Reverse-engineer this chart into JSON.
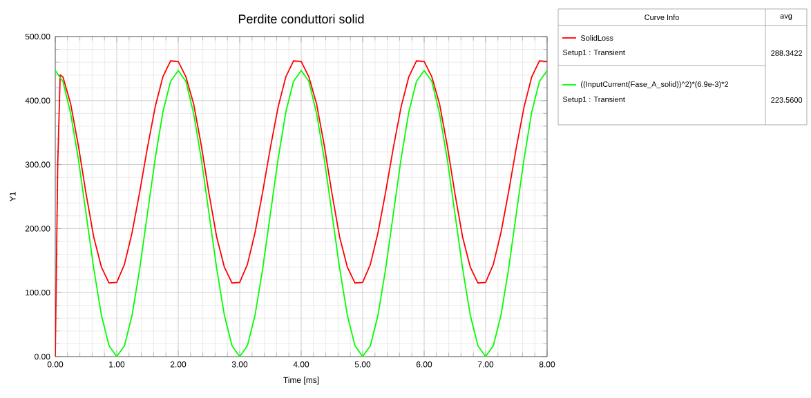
{
  "chart_data": {
    "type": "line",
    "title": "Perdite conduttori solid",
    "xlabel": "Time [ms]",
    "ylabel": "Y1",
    "legend_title": "Curve Info",
    "annotations": [
      "avg",
      "Setup1 : Transient",
      "288.3422",
      "Setup1 : Transient",
      "223.5600"
    ],
    "xlim": [
      0,
      8
    ],
    "ylim": [
      0,
      500
    ],
    "xticks": [
      {
        "value": 0,
        "label": "0.00"
      },
      {
        "value": 1,
        "label": "1.00"
      },
      {
        "value": 2,
        "label": "2.00"
      },
      {
        "value": 3,
        "label": "3.00"
      },
      {
        "value": 4,
        "label": "4.00"
      },
      {
        "value": 5,
        "label": "5.00"
      },
      {
        "value": 6,
        "label": "6.00"
      },
      {
        "value": 7,
        "label": "7.00"
      },
      {
        "value": 8,
        "label": "8.00"
      }
    ],
    "yticks": [
      {
        "value": 0,
        "label": "0.00"
      },
      {
        "value": 100,
        "label": "100.00"
      },
      {
        "value": 200,
        "label": "200.00"
      },
      {
        "value": 300,
        "label": "300.00"
      },
      {
        "value": 400,
        "label": "400.00"
      },
      {
        "value": 500,
        "label": "500.00"
      }
    ],
    "grid": true,
    "legend": "right",
    "line_style": "solid",
    "series": [
      {
        "name": "SolidLoss",
        "color": "#ff0000",
        "x": [
          0,
          0.04,
          0.08,
          0.125,
          0.25,
          0.375,
          0.5,
          0.625,
          0.75,
          0.875,
          1,
          1.125,
          1.25,
          1.375,
          1.5,
          1.625,
          1.75,
          1.875,
          2,
          2.125,
          2.25,
          2.375,
          2.5,
          2.625,
          2.75,
          2.875,
          3,
          3.125,
          3.25,
          3.375,
          3.5,
          3.625,
          3.75,
          3.875,
          4,
          4.125,
          4.25,
          4.375,
          4.5,
          4.625,
          4.75,
          4.875,
          5,
          5.125,
          5.25,
          5.375,
          5.5,
          5.625,
          5.75,
          5.875,
          6,
          6.125,
          6.25,
          6.375,
          6.5,
          6.625,
          6.75,
          6.875,
          7,
          7.125,
          7.25,
          7.375,
          7.5,
          7.625,
          7.75,
          7.875,
          8
        ],
        "values": [
          0,
          300,
          440,
          437,
          395,
          330,
          255,
          187,
          140,
          115,
          116,
          144,
          194,
          258,
          327,
          390,
          437,
          462,
          461,
          437,
          395,
          330,
          255,
          187,
          140,
          115,
          116,
          144,
          194,
          258,
          327,
          390,
          437,
          462,
          461,
          437,
          395,
          330,
          255,
          187,
          140,
          115,
          116,
          144,
          194,
          258,
          327,
          390,
          437,
          462,
          461,
          437,
          395,
          330,
          255,
          187,
          140,
          115,
          116,
          144,
          194,
          258,
          327,
          390,
          437,
          462,
          461
        ]
      },
      {
        "name": "((InputCurrent(Fase_A_solid))^2)*(6.9e-3)*2",
        "color": "#00ff00",
        "x": [
          0,
          0.125,
          0.25,
          0.375,
          0.5,
          0.625,
          0.75,
          0.875,
          1,
          1.125,
          1.25,
          1.375,
          1.5,
          1.625,
          1.75,
          1.875,
          2,
          2.125,
          2.25,
          2.375,
          2.5,
          2.625,
          2.75,
          2.875,
          3,
          3.125,
          3.25,
          3.375,
          3.5,
          3.625,
          3.75,
          3.875,
          4,
          4.125,
          4.25,
          4.375,
          4.5,
          4.625,
          4.75,
          4.875,
          5,
          5.125,
          5.25,
          5.375,
          5.5,
          5.625,
          5.75,
          5.875,
          6,
          6.125,
          6.25,
          6.375,
          6.5,
          6.625,
          6.75,
          6.875,
          7,
          7.125,
          7.25,
          7.375,
          7.5,
          7.625,
          7.75,
          7.875,
          8
        ],
        "values": [
          447,
          430,
          380,
          309,
          224,
          138,
          65,
          17,
          0,
          17,
          65,
          138,
          224,
          309,
          382,
          430,
          447,
          430,
          380,
          309,
          224,
          138,
          65,
          17,
          0,
          17,
          65,
          138,
          224,
          309,
          382,
          430,
          447,
          430,
          380,
          309,
          224,
          138,
          65,
          17,
          0,
          17,
          65,
          138,
          224,
          309,
          382,
          430,
          447,
          430,
          380,
          309,
          224,
          138,
          65,
          17,
          0,
          17,
          65,
          138,
          224,
          309,
          382,
          430,
          447
        ]
      }
    ]
  }
}
